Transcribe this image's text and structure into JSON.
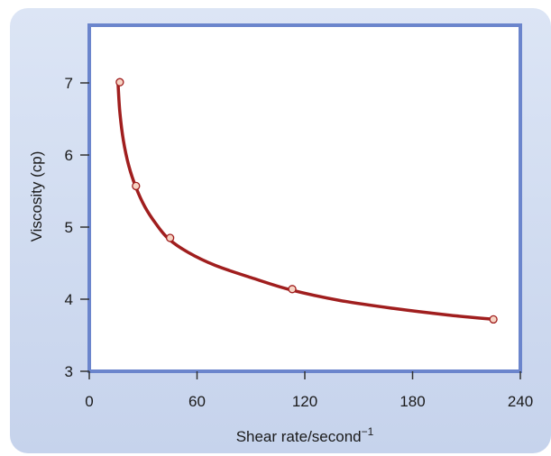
{
  "chart_data": {
    "type": "line",
    "xlabel": "Shear rate/second",
    "xlabel_superscript": "−1",
    "ylabel": "Viscosity (cp)",
    "xlim": [
      0,
      240
    ],
    "ylim": [
      3,
      7.8
    ],
    "xticks": [
      0,
      60,
      120,
      180,
      240
    ],
    "yticks": [
      3,
      4,
      5,
      6,
      7
    ],
    "grid": false,
    "legend": "none",
    "series": [
      {
        "curve": [
          [
            16,
            7.0
          ],
          [
            17,
            6.6
          ],
          [
            19,
            6.2
          ],
          [
            22,
            5.85
          ],
          [
            26,
            5.55
          ],
          [
            31,
            5.28
          ],
          [
            37,
            5.05
          ],
          [
            44,
            4.84
          ],
          [
            55,
            4.65
          ],
          [
            70,
            4.47
          ],
          [
            90,
            4.3
          ],
          [
            112,
            4.13
          ],
          [
            140,
            3.98
          ],
          [
            170,
            3.87
          ],
          [
            200,
            3.78
          ],
          [
            225,
            3.72
          ]
        ],
        "points": [
          [
            17,
            7.01
          ],
          [
            26,
            5.57
          ],
          [
            45,
            4.85
          ],
          [
            113,
            4.14
          ],
          [
            225,
            3.72
          ]
        ]
      }
    ],
    "colors": {
      "background_start": "#dce5f5",
      "background_end": "#c6d3ec",
      "plot_frame": "#6b85cc",
      "plot_fill": "#ffffff",
      "curve": "#a01e1e",
      "marker_fill": "#f7d4c4",
      "marker_stroke": "#a01e1e",
      "axis_ticks": "#333333"
    }
  }
}
